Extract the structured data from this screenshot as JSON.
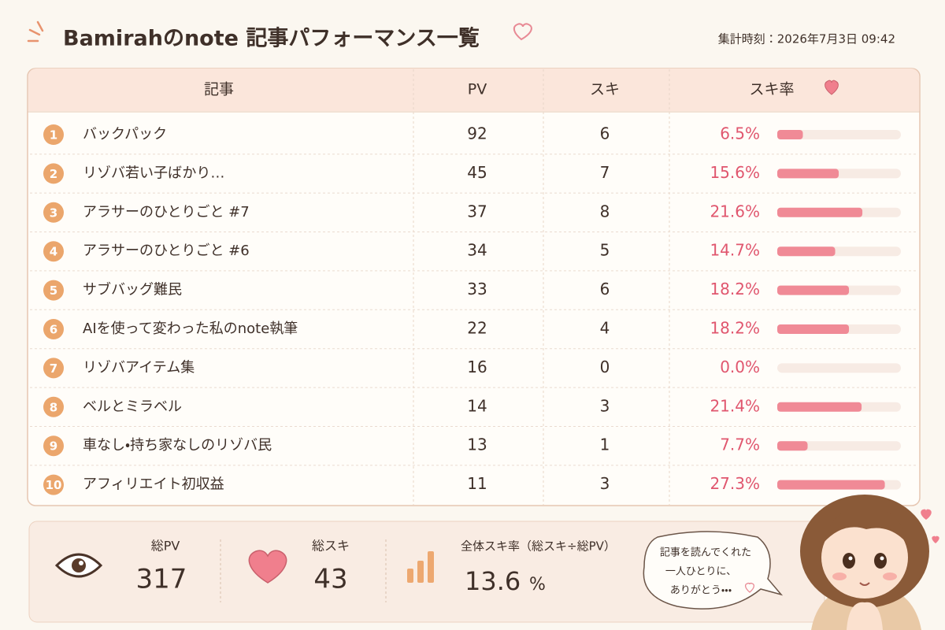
{
  "header": {
    "title": "Bamirahのnote 記事パフォーマンス一覧",
    "timestamp": "集計時刻：2026年7月3日 09:42"
  },
  "table": {
    "columns": [
      "記事",
      "PV",
      "スキ",
      "スキ率"
    ],
    "rows": [
      {
        "rank": 1,
        "title": "バックパック",
        "pv": 92,
        "suki": 6,
        "rate": 6.5,
        "rate_label": "6.5%"
      },
      {
        "rank": 2,
        "title": "リゾバ若い子ばかり…",
        "pv": 45,
        "suki": 7,
        "rate": 15.6,
        "rate_label": "15.6%"
      },
      {
        "rank": 3,
        "title": "アラサーのひとりごと #7",
        "pv": 37,
        "suki": 8,
        "rate": 21.6,
        "rate_label": "21.6%"
      },
      {
        "rank": 4,
        "title": "アラサーのひとりごと #6",
        "pv": 34,
        "suki": 5,
        "rate": 14.7,
        "rate_label": "14.7%"
      },
      {
        "rank": 5,
        "title": "サブバッグ難民",
        "pv": 33,
        "suki": 6,
        "rate": 18.2,
        "rate_label": "18.2%"
      },
      {
        "rank": 6,
        "title": "AIを使って変わった私のnote執筆",
        "pv": 22,
        "suki": 4,
        "rate": 18.2,
        "rate_label": "18.2%"
      },
      {
        "rank": 7,
        "title": "リゾバアイテム集",
        "pv": 16,
        "suki": 0,
        "rate": 0.0,
        "rate_label": "0.0%"
      },
      {
        "rank": 8,
        "title": "ベルとミラベル",
        "pv": 14,
        "suki": 3,
        "rate": 21.4,
        "rate_label": "21.4%"
      },
      {
        "rank": 9,
        "title": "車なし・持ち家なしのリゾバ民",
        "pv": 13,
        "suki": 1,
        "rate": 7.7,
        "rate_label": "7.7%"
      },
      {
        "rank": 10,
        "title": "アフィリエイト初収益",
        "pv": 11,
        "suki": 3,
        "rate": 27.3,
        "rate_label": "27.3%"
      }
    ]
  },
  "summary": {
    "total_pv_label": "総PV",
    "total_pv": 317,
    "total_suki_label": "総スキ",
    "total_suki": 43,
    "overall_rate_label": "全体スキ率（総スキ÷総PV）",
    "overall_rate": "13.6",
    "overall_rate_unit": "%"
  },
  "bubble": {
    "lines": [
      "記事を読んでくれた",
      "一人ひとりに、",
      "ありがとう・・・"
    ]
  }
}
